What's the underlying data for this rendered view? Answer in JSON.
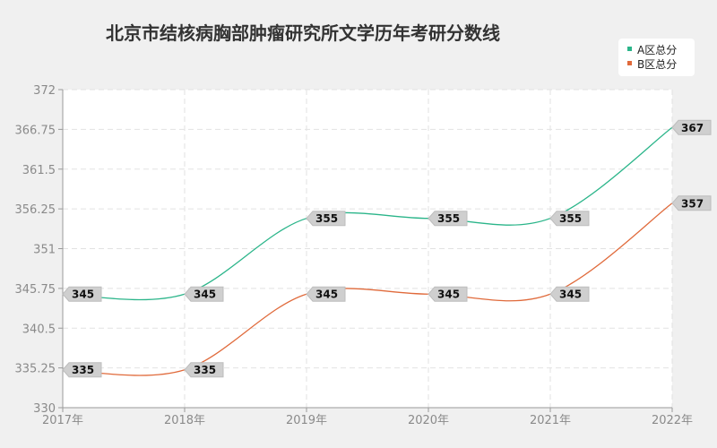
{
  "chart_data": {
    "type": "line",
    "title": "北京市结核病胸部肿瘤研究所文学历年考研分数线",
    "xlabel": "",
    "ylabel": "",
    "categories": [
      "2017年",
      "2018年",
      "2019年",
      "2020年",
      "2021年",
      "2022年"
    ],
    "y_ticks": [
      "372",
      "366.75",
      "361.5",
      "356.25",
      "351",
      "345.75",
      "340.5",
      "335.25",
      "330"
    ],
    "ylim": [
      330,
      372
    ],
    "grid": true,
    "legend_position": "top-right",
    "series": [
      {
        "name": "A区总分",
        "color": "#2bb58a",
        "values": [
          345,
          345,
          355,
          355,
          355,
          367
        ]
      },
      {
        "name": "B区总分",
        "color": "#e06a3b",
        "values": [
          335,
          335,
          345,
          345,
          345,
          357
        ]
      }
    ]
  }
}
